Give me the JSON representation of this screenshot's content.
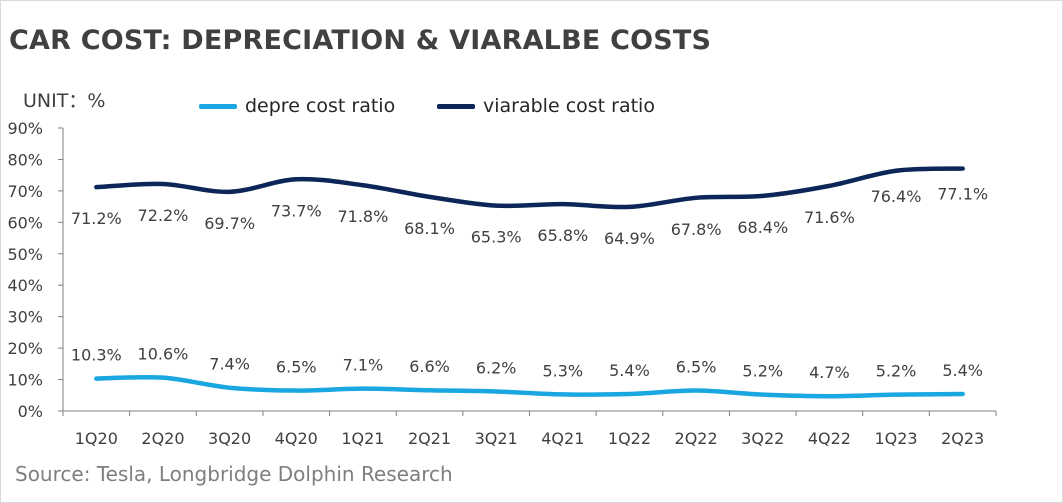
{
  "title": "CAR COST: DEPRECIATION & VIARALBE COSTS",
  "unit_label": "UNIT：%",
  "source": "Source: Tesla, Longbridge Dolphin Research",
  "colors": {
    "depre": "#1aa6e0",
    "variable": "#0c2657",
    "axis": "#404040",
    "label": "#404040"
  },
  "chart_data": {
    "type": "line",
    "title": "CAR COST: DEPRECIATION & VIARALBE COSTS",
    "xlabel": "",
    "ylabel": "",
    "ylim": [
      0,
      90
    ],
    "yticks": [
      "0%",
      "10%",
      "20%",
      "30%",
      "40%",
      "50%",
      "60%",
      "70%",
      "80%",
      "90%"
    ],
    "grid": false,
    "legend_position": "top",
    "categories": [
      "1Q20",
      "2Q20",
      "3Q20",
      "4Q20",
      "1Q21",
      "2Q21",
      "3Q21",
      "4Q21",
      "1Q22",
      "2Q22",
      "3Q22",
      "4Q22",
      "1Q23",
      "2Q23"
    ],
    "series": [
      {
        "name": "depre cost ratio",
        "color": "#1aa6e0",
        "values": [
          10.3,
          10.6,
          7.4,
          6.5,
          7.1,
          6.6,
          6.2,
          5.3,
          5.4,
          6.5,
          5.2,
          4.7,
          5.2,
          5.4
        ],
        "labels": [
          "10.3%",
          "10.6%",
          "7.4%",
          "6.5%",
          "7.1%",
          "6.6%",
          "6.2%",
          "5.3%",
          "5.4%",
          "6.5%",
          "5.2%",
          "4.7%",
          "5.2%",
          "5.4%"
        ]
      },
      {
        "name": "viarable cost ratio",
        "color": "#0c2657",
        "values": [
          71.2,
          72.2,
          69.7,
          73.7,
          71.8,
          68.1,
          65.3,
          65.8,
          64.9,
          67.8,
          68.4,
          71.6,
          76.4,
          77.1
        ],
        "labels": [
          "71.2%",
          "72.2%",
          "69.7%",
          "73.7%",
          "71.8%",
          "68.1%",
          "65.3%",
          "65.8%",
          "64.9%",
          "67.8%",
          "68.4%",
          "71.6%",
          "76.4%",
          "77.1%"
        ]
      }
    ]
  }
}
